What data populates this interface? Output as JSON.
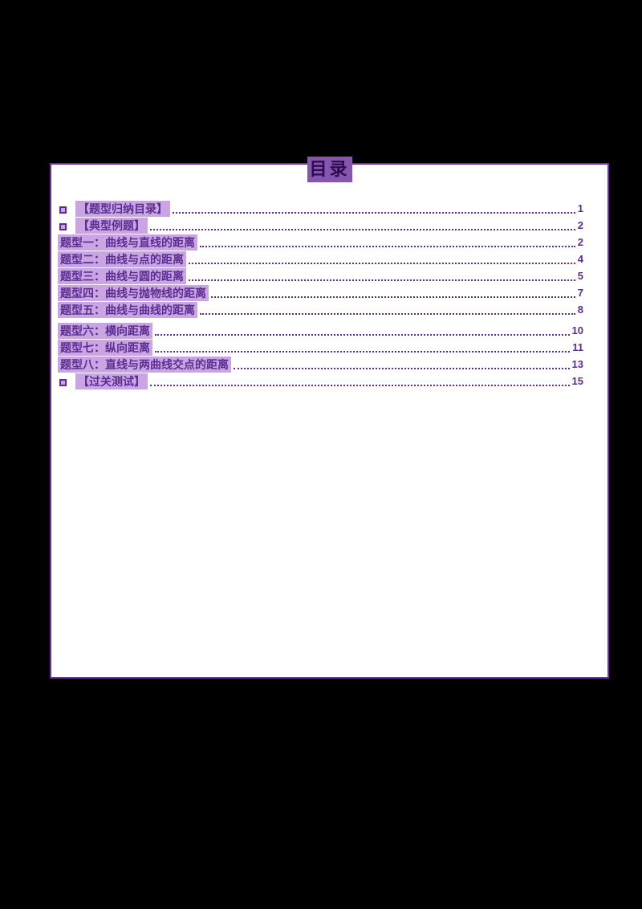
{
  "document": {
    "title": "目录",
    "colors": {
      "page_background": "#000000",
      "content_background": "#ffffff",
      "border": "#7030a0",
      "text": "#5c2d91",
      "title_highlight": "#8655ae",
      "entry_highlight": "#c9a6e3"
    },
    "toc_entries": [
      {
        "bullet": "square",
        "label": "【题型归纳目录】",
        "page": "1"
      },
      {
        "bullet": "square",
        "label": "【典型例题】",
        "page": "2"
      },
      {
        "bullet": null,
        "label": "题型一：曲线与直线的距离",
        "page": "2"
      },
      {
        "bullet": null,
        "label": "题型二：曲线与点的距离",
        "page": "4"
      },
      {
        "bullet": null,
        "label": "题型三：曲线与圆的距离",
        "page": "5"
      },
      {
        "bullet": null,
        "label": "题型四：曲线与抛物线的距离",
        "page": "7"
      },
      {
        "bullet": null,
        "label": "题型五：曲线与曲线的距离",
        "page": "8"
      },
      {
        "bullet": null,
        "label": "题型六：横向距离",
        "page": "10"
      },
      {
        "bullet": null,
        "label": "题型七：纵向距离",
        "page": "11"
      },
      {
        "bullet": null,
        "label": "题型八：直线与两曲线交点的距离",
        "page": "13"
      },
      {
        "bullet": "square",
        "label": "【过关测试】",
        "page": "15"
      }
    ]
  }
}
